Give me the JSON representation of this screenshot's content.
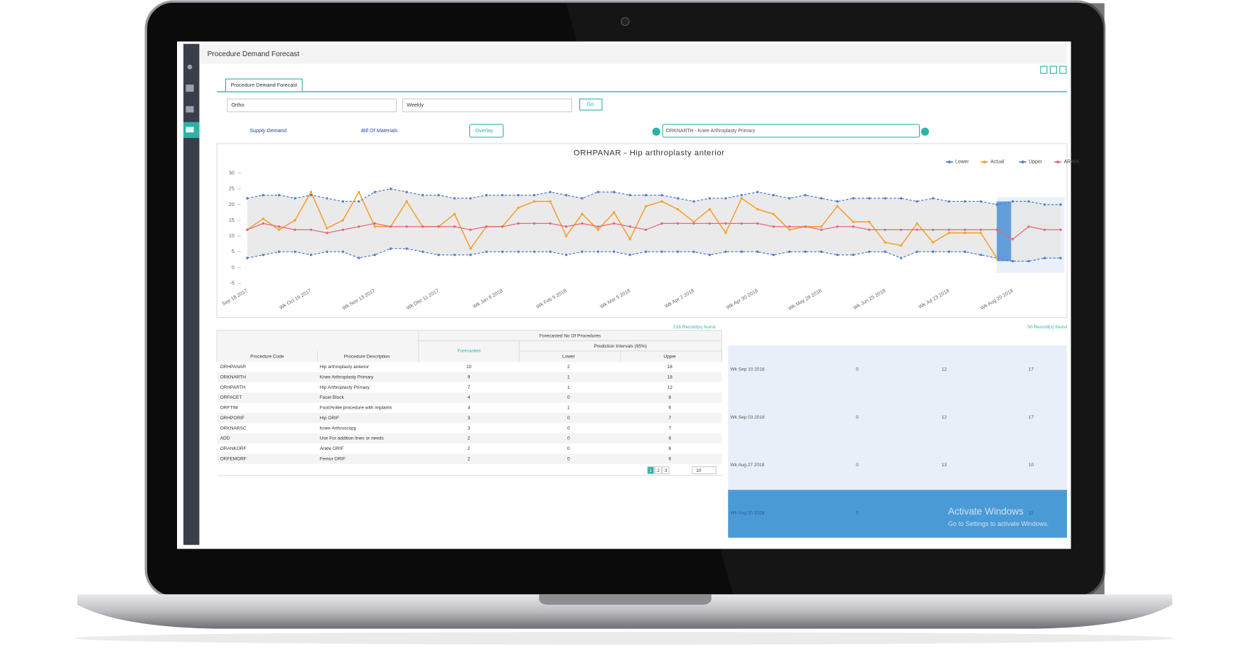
{
  "header": {
    "title": "Procedure Demand Forecast"
  },
  "tab": "Procedure Demand Forecast",
  "filters": {
    "department": "Ortho",
    "frequency": "Weekly",
    "go": "Go"
  },
  "links": {
    "supply_demand": "Supply Demand",
    "bill_of_materials": "Bill Of Materials",
    "overlay": "Overlay"
  },
  "search": "ORKNARTH - Knee Arthroplasty Primary",
  "chart": {
    "type": "line",
    "title": "ORHPANAR - Hip arthroplasty anterior",
    "categories": [
      "Sep 18 2017",
      null,
      null,
      null,
      "Wk Oct 16 2017",
      null,
      null,
      null,
      "Wk Nov 13 2017",
      null,
      null,
      null,
      "Wk Dec 11 2017",
      null,
      null,
      null,
      "Wk Jan 8 2018",
      null,
      null,
      null,
      "Wk Feb 5 2018",
      null,
      null,
      null,
      "Wk Mar 5 2018",
      null,
      null,
      null,
      "Wk Apr 2 2018",
      null,
      null,
      null,
      "Wk Apr 30 2018",
      null,
      null,
      null,
      "Wk May 28 2018",
      null,
      null,
      null,
      "Wk Jun 25 2018",
      null,
      null,
      null,
      "Wk Jul 23 2018",
      null,
      null,
      null,
      "Wk Aug 20 2018",
      null,
      null,
      null
    ],
    "series": [
      {
        "name": "Lower",
        "color": "#4f7fd0",
        "values": [
          3,
          4,
          5,
          5,
          4,
          5,
          5,
          3,
          4,
          6,
          6,
          5,
          4,
          4,
          4,
          5,
          5,
          5,
          5,
          5,
          4,
          5,
          5,
          5,
          4,
          5,
          5,
          5,
          5,
          4,
          5,
          5,
          5,
          4,
          5,
          5,
          5,
          4,
          4,
          5,
          5,
          3,
          5,
          5,
          5,
          5,
          4,
          3,
          2,
          2,
          3,
          3
        ]
      },
      {
        "name": "Actual",
        "color": "#f5a030",
        "values": [
          12,
          15.5,
          12,
          15,
          24,
          12.5,
          15,
          24,
          13,
          13,
          21,
          13,
          13,
          17,
          6,
          13,
          13,
          19,
          21,
          21,
          10,
          17,
          12,
          17.5,
          9,
          19.5,
          21,
          18.5,
          14.5,
          18.5,
          11,
          22,
          18.5,
          17,
          12,
          13,
          13,
          19.5,
          14.5,
          14.5,
          8,
          7,
          14,
          8,
          11,
          11,
          11,
          3,
          null,
          null,
          null,
          null
        ]
      },
      {
        "name": "Upper",
        "color": "#4f7fd0",
        "values": [
          22,
          23,
          23,
          22,
          23,
          22,
          21,
          21,
          24,
          25,
          24,
          23,
          23,
          22,
          22,
          23,
          23,
          23,
          23,
          24,
          23,
          22,
          24,
          24,
          23,
          23,
          23,
          22,
          21,
          22,
          22,
          23,
          24,
          23,
          22,
          23,
          22,
          21,
          22,
          22,
          22,
          22,
          21,
          22,
          21,
          21,
          21,
          20,
          21,
          21,
          20,
          20
        ]
      },
      {
        "name": "ARIMA",
        "color": "#e8677a",
        "values": [
          12,
          14,
          13,
          12,
          12,
          11,
          12,
          13,
          14,
          13,
          13,
          13,
          13,
          13,
          12,
          13,
          13,
          14,
          14,
          14,
          13,
          14,
          13,
          14,
          13,
          12,
          14,
          14,
          14,
          14,
          14,
          14,
          14,
          13,
          13,
          13,
          12,
          13,
          13,
          12,
          12,
          12,
          12,
          12,
          12,
          12,
          12,
          12,
          9,
          13,
          12,
          12
        ]
      }
    ],
    "ylim": [
      -5,
      30
    ],
    "yticks": [
      -5,
      0,
      5,
      10,
      15,
      20,
      25,
      30
    ],
    "legend": "top-right",
    "grid": false
  },
  "table": {
    "records": "216 Record(s) found",
    "group_header": "Forecasted No Of Procedures",
    "sub_header": "Prediction Intervals (95%)",
    "columns": [
      "Procedure Code",
      "Procedure Description",
      "Forecasted",
      "Lower",
      "Upper"
    ],
    "rows": [
      [
        "ORHPANAR",
        "Hip arthroplasty anterior",
        10,
        2,
        18
      ],
      [
        "ORKNARTH",
        "Knee Arthroplasty Primary",
        9,
        1,
        18
      ],
      [
        "ORHPARTH",
        "Hip Arthroplasty Primary",
        7,
        1,
        12
      ],
      [
        "ORFACET",
        "Facet Block",
        4,
        0,
        8
      ],
      [
        "ORFTIM",
        "Foot/Ankle procedure with implants",
        4,
        1,
        6
      ],
      [
        "ORHPORIF",
        "Hip ORIF",
        3,
        0,
        7
      ],
      [
        "ORKNARSC",
        "Knee Arthroscopy",
        3,
        0,
        7
      ],
      [
        "ADD",
        "Use For addition lines or needs",
        2,
        0,
        6
      ],
      [
        "ORANKORF",
        "Ankle ORIF",
        2,
        0,
        6
      ],
      [
        "ORFEMORF",
        "Femur ORIF",
        2,
        0,
        6
      ]
    ],
    "pages": [
      1,
      2,
      3
    ],
    "page_size": 10
  },
  "detail": {
    "records": "50 Record(s) found",
    "rows": [
      [
        "Wk Sep 10 2018",
        0,
        12,
        17
      ],
      [
        "Wk Sep 03 2018",
        0,
        12,
        17
      ],
      [
        "Wk Aug 27 2018",
        0,
        13,
        10
      ],
      [
        "Wk Aug 20 2018",
        0,
        null,
        11
      ]
    ]
  },
  "watermark": {
    "title": "Activate Windows",
    "text": "Go to Settings to activate Windows."
  }
}
